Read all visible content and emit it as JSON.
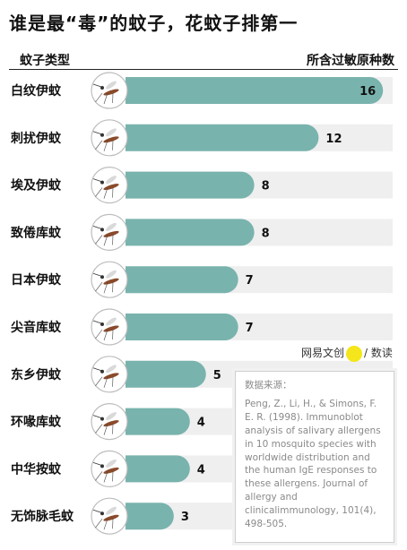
{
  "title": "谁是最“毒”的蚊子，花蚊子排第一",
  "header": {
    "left": "蚊子类型",
    "right": "所含过敏原种数"
  },
  "colors": {
    "bar": "#79b3ad",
    "track": "#efefef",
    "icon_ring": "#bdbdbd"
  },
  "chart_data": {
    "type": "bar",
    "orientation": "horizontal",
    "categories": [
      "白纹伊蚊",
      "刺扰伊蚊",
      "埃及伊蚊",
      "致倦库蚊",
      "日本伊蚊",
      "尖音库蚊",
      "东乡伊蚊",
      "环喙库蚊",
      "中华按蚊",
      "无饰脉毛蚊"
    ],
    "values": [
      16,
      12,
      8,
      8,
      7,
      7,
      5,
      4,
      4,
      3
    ],
    "xlim": [
      0,
      16.6
    ],
    "grid": false
  },
  "icons": [
    "mosquito-icon",
    "mosquito-icon",
    "mosquito-icon",
    "mosquito-icon",
    "mosquito-icon",
    "mosquito-icon",
    "mosquito-icon",
    "mosquito-icon",
    "mosquito-icon",
    "mosquito-icon"
  ],
  "brand": {
    "name": "网易文创",
    "suffix": "/ 数读"
  },
  "source": {
    "label": "数据来源：",
    "text": "Peng, Z., Li, H., & Simons, F. E. R. (1998). Immunoblot analysis of salivary allergens in 10 mosquito species with worldwide distribution and the human IgE responses to these allergens. Journal of allergy and clinicalimmunology, 101(4), 498-505."
  }
}
